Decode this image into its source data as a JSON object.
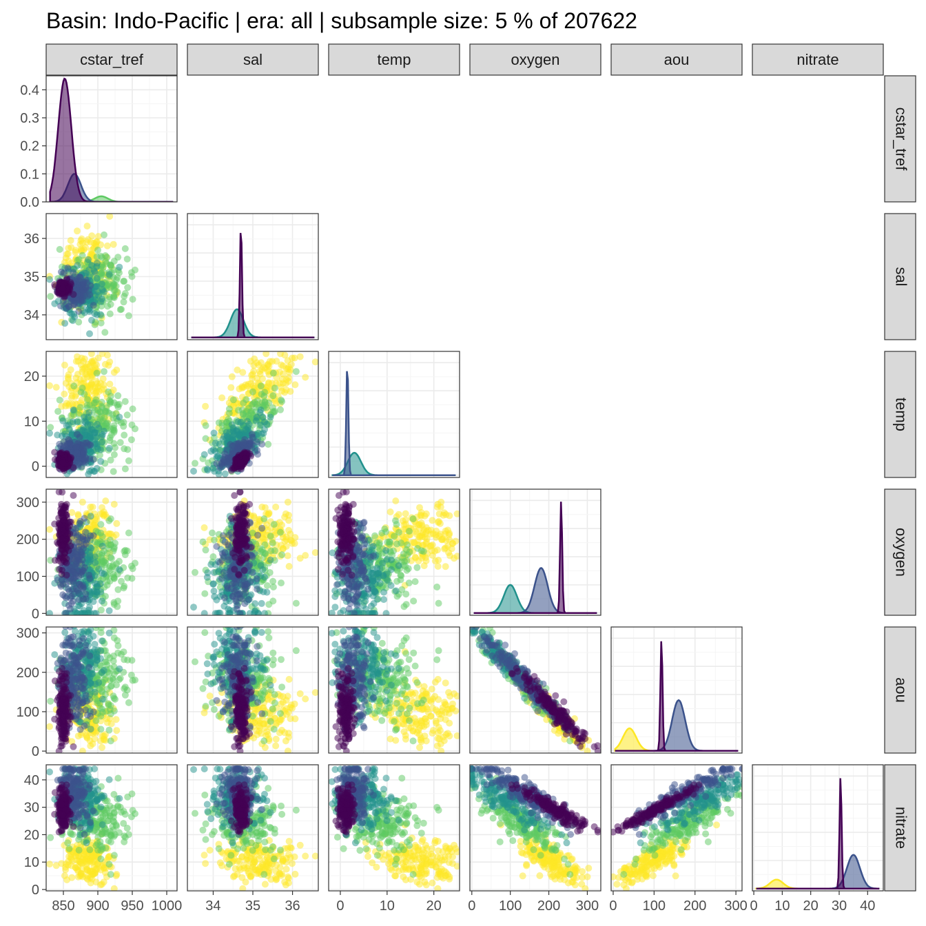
{
  "page": {
    "title": "Basin: Indo-Pacific | era: all | subsample size: 5 % of 207622"
  },
  "colors": {
    "palette": [
      "#440154",
      "#3b528b",
      "#21918c",
      "#5ec962",
      "#fde725"
    ],
    "strip_fill": "#d9d9d9",
    "strip_border": "#333333",
    "panel_border": "#333333",
    "grid_major": "#ebebeb",
    "grid_minor": "#f5f5f5"
  },
  "chart_data": {
    "type": "scatter",
    "subtype": "pairs-plot (scatter matrix, lower triangle with density diagonal)",
    "title": "Basin: Indo-Pacific | era: all | subsample size: 5 % of 207622",
    "variables": [
      "cstar_tref",
      "sal",
      "temp",
      "oxygen",
      "aou",
      "nitrate"
    ],
    "grid": true,
    "color_scale": "viridis",
    "axes": {
      "cstar_tref": {
        "range": [
          825,
          1015
        ],
        "ticks": [
          850,
          900,
          950,
          1000
        ],
        "density_range": [
          0,
          0.45
        ],
        "density_ticks": [
          0.0,
          0.1,
          0.2,
          0.3,
          0.4
        ]
      },
      "sal": {
        "range": [
          33.35,
          36.65
        ],
        "ticks": [
          34,
          35,
          36
        ]
      },
      "temp": {
        "range": [
          -2.5,
          25.5
        ],
        "ticks": [
          0,
          10,
          20
        ]
      },
      "oxygen": {
        "range": [
          -5,
          335
        ],
        "ticks": [
          0,
          100,
          200,
          300
        ]
      },
      "aou": {
        "range": [
          -5,
          315
        ],
        "ticks": [
          0,
          100,
          200,
          300
        ]
      },
      "nitrate": {
        "range": [
          -0.5,
          45.5
        ],
        "ticks": [
          0,
          10,
          20,
          30,
          40
        ]
      }
    },
    "tick_labels": {
      "cstar_tref": [
        "850",
        "900",
        "950",
        "1000"
      ],
      "sal": [
        "34",
        "35",
        "36"
      ],
      "temp": [
        "0",
        "10",
        "20"
      ],
      "oxygen": [
        "0",
        "100",
        "200",
        "300"
      ],
      "aou": [
        "0",
        "100",
        "200",
        "300"
      ],
      "nitrate": [
        "0",
        "10",
        "20",
        "30",
        "40"
      ],
      "cstar_tref_density": [
        "0.0",
        "0.1",
        "0.2",
        "0.3",
        "0.4"
      ]
    },
    "water_mass_groups": [
      {
        "color": "#fde725",
        "cstar_tref": 885,
        "sal": 35.1,
        "temp": 17,
        "oxygen": 205,
        "aou": 40,
        "nitrate": 6
      },
      {
        "color": "#5ec962",
        "cstar_tref": 900,
        "sal": 34.8,
        "temp": 9,
        "oxygen": 130,
        "aou": 130,
        "nitrate": 20
      },
      {
        "color": "#21918c",
        "cstar_tref": 880,
        "sal": 34.6,
        "temp": 5,
        "oxygen": 90,
        "aou": 220,
        "nitrate": 33
      },
      {
        "color": "#3b528b",
        "cstar_tref": 865,
        "sal": 34.65,
        "temp": 2.5,
        "oxygen": 140,
        "aou": 190,
        "nitrate": 36
      },
      {
        "color": "#440154",
        "cstar_tref": 850,
        "sal": 34.7,
        "temp": 1.2,
        "oxygen": 220,
        "aou": 115,
        "nitrate": 30
      }
    ],
    "diagonal_peaks": {
      "cstar_tref": [
        {
          "color": "#440154",
          "x": 852,
          "y": 0.44
        },
        {
          "color": "#3b528b",
          "x": 866,
          "y": 0.1
        },
        {
          "color": "#5ec962",
          "x": 905,
          "y": 0.02
        }
      ],
      "sal": [
        {
          "color": "#440154",
          "x": 34.7,
          "y": 1.0
        },
        {
          "color": "#21918c",
          "x": 34.6,
          "y": 0.25
        }
      ],
      "temp": [
        {
          "color": "#3b528b",
          "x": 1.5,
          "y": 1.0
        },
        {
          "color": "#21918c",
          "x": 3,
          "y": 0.2
        }
      ],
      "oxygen": [
        {
          "color": "#440154",
          "x": 232,
          "y": 1.0
        },
        {
          "color": "#3b528b",
          "x": 180,
          "y": 0.4
        },
        {
          "color": "#21918c",
          "x": 100,
          "y": 0.25
        }
      ],
      "aou": [
        {
          "color": "#440154",
          "x": 118,
          "y": 1.0
        },
        {
          "color": "#3b528b",
          "x": 160,
          "y": 0.45
        },
        {
          "color": "#fde725",
          "x": 40,
          "y": 0.2
        }
      ],
      "nitrate": [
        {
          "color": "#440154",
          "x": 30.5,
          "y": 1.0
        },
        {
          "color": "#3b528b",
          "x": 35,
          "y": 0.3
        },
        {
          "color": "#fde725",
          "x": 8,
          "y": 0.08
        }
      ]
    }
  }
}
